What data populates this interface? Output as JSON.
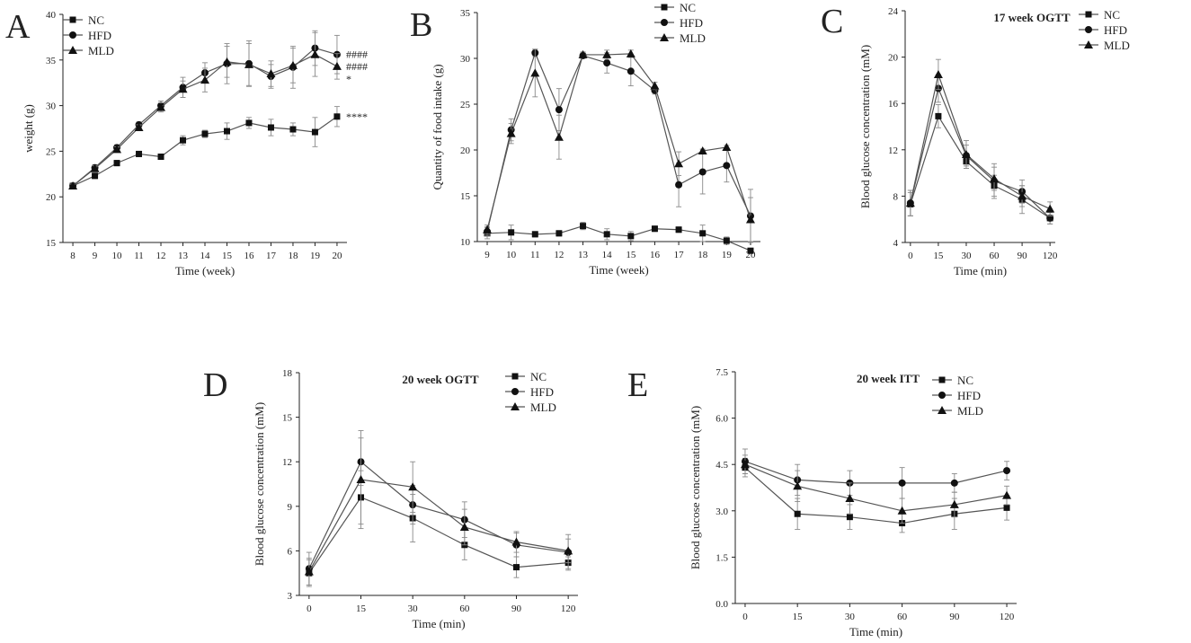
{
  "colors": {
    "line": "#555555",
    "marker": "#111111",
    "axis": "#222222",
    "error": "#8a8a8a",
    "annot": "#555555"
  },
  "chart_data": [
    {
      "id": "A",
      "letter": "A",
      "type": "line",
      "title": "",
      "xlabel": "Time (week)",
      "ylabel": "weight (g)",
      "categories": [
        "8",
        "9",
        "10",
        "11",
        "12",
        "13",
        "14",
        "15",
        "16",
        "17",
        "18",
        "19",
        "20"
      ],
      "ylim": [
        15,
        40
      ],
      "yticks": [
        15,
        20,
        25,
        30,
        35,
        40
      ],
      "legend": {
        "position": "top-left"
      },
      "series": [
        {
          "name": "NC",
          "marker": "square",
          "values": [
            21.2,
            22.3,
            23.7,
            24.7,
            24.4,
            26.2,
            26.9,
            27.2,
            28.1,
            27.6,
            27.4,
            27.1,
            28.8
          ],
          "errors": [
            0.2,
            0.3,
            0.3,
            0.3,
            0.3,
            0.5,
            0.4,
            0.9,
            0.6,
            0.9,
            0.7,
            1.6,
            1.1
          ]
        },
        {
          "name": "HFD",
          "marker": "circle",
          "values": [
            21.2,
            23.2,
            25.4,
            27.9,
            30.0,
            32.0,
            33.6,
            34.6,
            34.6,
            33.2,
            34.2,
            36.3,
            35.6
          ],
          "errors": [
            0.2,
            0.3,
            0.3,
            0.3,
            0.5,
            1.1,
            1.1,
            2.2,
            2.5,
            1.3,
            2.3,
            1.9,
            2.1
          ]
        },
        {
          "name": "MLD",
          "marker": "triangle",
          "values": [
            21.2,
            23.1,
            25.2,
            27.6,
            29.8,
            31.8,
            32.8,
            34.8,
            34.5,
            33.5,
            34.4,
            35.6,
            34.3
          ],
          "errors": [
            0.2,
            0.3,
            0.3,
            0.3,
            0.5,
            0.9,
            1.3,
            1.7,
            2.3,
            1.4,
            1.9,
            2.4,
            1.4
          ]
        }
      ],
      "annotations": [
        {
          "text": "####",
          "series": "HFD",
          "index": 12
        },
        {
          "text": "####",
          "series": "MLD",
          "index": 12
        },
        {
          "text": "*",
          "series": "MLD",
          "index": 12,
          "below": true
        },
        {
          "text": "****",
          "series": "NC",
          "index": 12
        }
      ]
    },
    {
      "id": "B",
      "letter": "B",
      "type": "line",
      "title": "",
      "xlabel": "Time (week)",
      "ylabel": "Quantity of food intake (g)",
      "categories": [
        "9",
        "10",
        "11",
        "12",
        "13",
        "14",
        "15",
        "16",
        "17",
        "18",
        "19",
        "20"
      ],
      "ylim": [
        10,
        35
      ],
      "yticks": [
        10,
        15,
        20,
        25,
        30,
        35
      ],
      "legend": {
        "position": "top-right"
      },
      "series": [
        {
          "name": "NC",
          "marker": "square",
          "values": [
            10.9,
            11.0,
            10.8,
            10.9,
            11.7,
            10.8,
            10.6,
            11.4,
            11.3,
            10.9,
            10.1,
            9.0
          ],
          "errors": [
            0.6,
            0.8,
            0.3,
            0.3,
            0.4,
            0.6,
            0.5,
            0.3,
            0.3,
            0.9,
            0.4,
            0.2
          ]
        },
        {
          "name": "HFD",
          "marker": "circle",
          "values": [
            11.1,
            22.2,
            30.6,
            24.4,
            30.3,
            29.5,
            28.6,
            26.5,
            16.2,
            17.6,
            18.3,
            12.8
          ],
          "errors": [
            0.5,
            1.2,
            0.4,
            2.3,
            0.3,
            1.1,
            1.6,
            0.4,
            2.4,
            2.4,
            1.8,
            2.9
          ]
        },
        {
          "name": "MLD",
          "marker": "triangle",
          "values": [
            11.3,
            21.8,
            28.4,
            21.4,
            30.4,
            30.4,
            30.5,
            27.0,
            18.5,
            19.9,
            20.3,
            12.4
          ],
          "errors": [
            0.5,
            1.1,
            2.6,
            2.4,
            0.3,
            0.5,
            0.4,
            0.4,
            1.3,
            0.2,
            0.2,
            2.4
          ]
        }
      ],
      "annotations": []
    },
    {
      "id": "C",
      "letter": "C",
      "type": "line",
      "title": "17 week OGTT",
      "xlabel": "Time (min)",
      "ylabel": "Blood glucose concentration (mM)",
      "categories": [
        "0",
        "15",
        "30",
        "60",
        "90",
        "120"
      ],
      "ylim": [
        4,
        24
      ],
      "yticks": [
        4,
        8,
        12,
        16,
        20,
        24
      ],
      "legend": {
        "position": "top-right"
      },
      "series": [
        {
          "name": "NC",
          "marker": "square",
          "values": [
            7.3,
            14.9,
            11.0,
            8.9,
            7.7,
            6.1
          ],
          "errors": [
            1.0,
            1.0,
            0.6,
            0.9,
            1.2,
            0.5
          ]
        },
        {
          "name": "HFD",
          "marker": "circle",
          "values": [
            7.4,
            17.3,
            11.5,
            9.3,
            8.4,
            6.1
          ],
          "errors": [
            1.1,
            1.2,
            0.9,
            1.5,
            1.0,
            0.5
          ]
        },
        {
          "name": "MLD",
          "marker": "triangle",
          "values": [
            7.4,
            18.5,
            11.6,
            9.5,
            8.0,
            6.9
          ],
          "errors": [
            1.1,
            1.3,
            1.2,
            1.0,
            0.9,
            0.6
          ]
        }
      ],
      "annotations": []
    },
    {
      "id": "D",
      "letter": "D",
      "type": "line",
      "title": "20 week OGTT",
      "xlabel": "Time (min)",
      "ylabel": "Blood glucose concentration (mM)",
      "categories": [
        "0",
        "15",
        "30",
        "60",
        "90",
        "120"
      ],
      "ylim": [
        3,
        18
      ],
      "yticks": [
        3,
        6,
        9,
        12,
        15,
        18
      ],
      "legend": {
        "position": "top-right"
      },
      "series": [
        {
          "name": "NC",
          "marker": "square",
          "values": [
            4.5,
            9.6,
            8.2,
            6.4,
            4.9,
            5.2
          ],
          "errors": [
            0.9,
            1.8,
            1.6,
            1.0,
            0.7,
            0.4
          ]
        },
        {
          "name": "HFD",
          "marker": "circle",
          "values": [
            4.8,
            12.0,
            9.1,
            8.1,
            6.4,
            5.9
          ],
          "errors": [
            1.1,
            1.6,
            1.3,
            1.2,
            0.8,
            1.2
          ]
        },
        {
          "name": "MLD",
          "marker": "triangle",
          "values": [
            4.6,
            10.8,
            10.3,
            7.6,
            6.6,
            6.0
          ],
          "errors": [
            0.9,
            3.3,
            1.7,
            1.2,
            0.7,
            0.8
          ]
        }
      ],
      "annotations": []
    },
    {
      "id": "E",
      "letter": "E",
      "type": "line",
      "title": "20 week ITT",
      "xlabel": "Time (min)",
      "ylabel": "Blood glucose concentration (mM)",
      "categories": [
        "0",
        "15",
        "30",
        "60",
        "90",
        "120"
      ],
      "ylim": [
        0,
        7.5
      ],
      "yticks": [
        0.0,
        1.5,
        3.0,
        4.5,
        6.0,
        7.5
      ],
      "ytick_decimals": 1,
      "legend": {
        "position": "top-right"
      },
      "series": [
        {
          "name": "NC",
          "marker": "square",
          "values": [
            4.4,
            2.9,
            2.8,
            2.6,
            2.9,
            3.1
          ],
          "errors": [
            0.3,
            0.5,
            0.4,
            0.3,
            0.5,
            0.4
          ]
        },
        {
          "name": "HFD",
          "marker": "circle",
          "values": [
            4.6,
            4.0,
            3.9,
            3.9,
            3.9,
            4.3
          ],
          "errors": [
            0.4,
            0.5,
            0.4,
            0.5,
            0.3,
            0.3
          ]
        },
        {
          "name": "MLD",
          "marker": "triangle",
          "values": [
            4.5,
            3.8,
            3.4,
            3.0,
            3.2,
            3.5
          ],
          "errors": [
            0.3,
            0.5,
            0.5,
            0.4,
            0.4,
            0.3
          ]
        }
      ],
      "annotations": []
    }
  ]
}
